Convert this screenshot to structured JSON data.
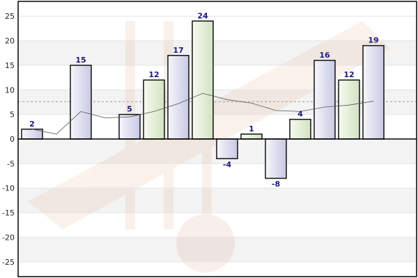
{
  "chart_data": {
    "type": "bar",
    "title": "",
    "xlabel": "",
    "ylabel": "",
    "ylim": [
      -28,
      28
    ],
    "yticks": [
      -25,
      -20,
      -15,
      -10,
      -5,
      0,
      5,
      10,
      15,
      20,
      25
    ],
    "grid": true,
    "legend": "none",
    "reference_line": {
      "value": 7.6,
      "style": "dashed",
      "color": "#999999"
    },
    "series": [
      {
        "values": [
          2,
          null,
          15,
          null,
          5,
          12,
          17,
          24,
          -4,
          1,
          -8,
          4,
          16,
          12,
          19
        ],
        "bar_styles": [
          "blue",
          null,
          "blue",
          null,
          "blue",
          "green",
          "blue",
          "green",
          "blue",
          "green",
          "blue",
          "green",
          "blue",
          "green",
          "blue"
        ]
      }
    ],
    "trend_line": [
      2,
      1,
      5.6,
      4.3,
      4.5,
      5.6,
      7.2,
      9.3,
      8,
      7.3,
      5.8,
      5.6,
      6.5,
      6.9,
      7.7
    ],
    "colors": {
      "bar_blue_light": "#f6f6fc",
      "bar_blue_dark": "#c8c8e4",
      "bar_green_light": "#f6faef",
      "bar_green_dark": "#d2e2c2",
      "bar_stroke": "#111111",
      "label": "#1a1a7a",
      "band": "#f3f3f3",
      "trend": "#555555"
    }
  }
}
